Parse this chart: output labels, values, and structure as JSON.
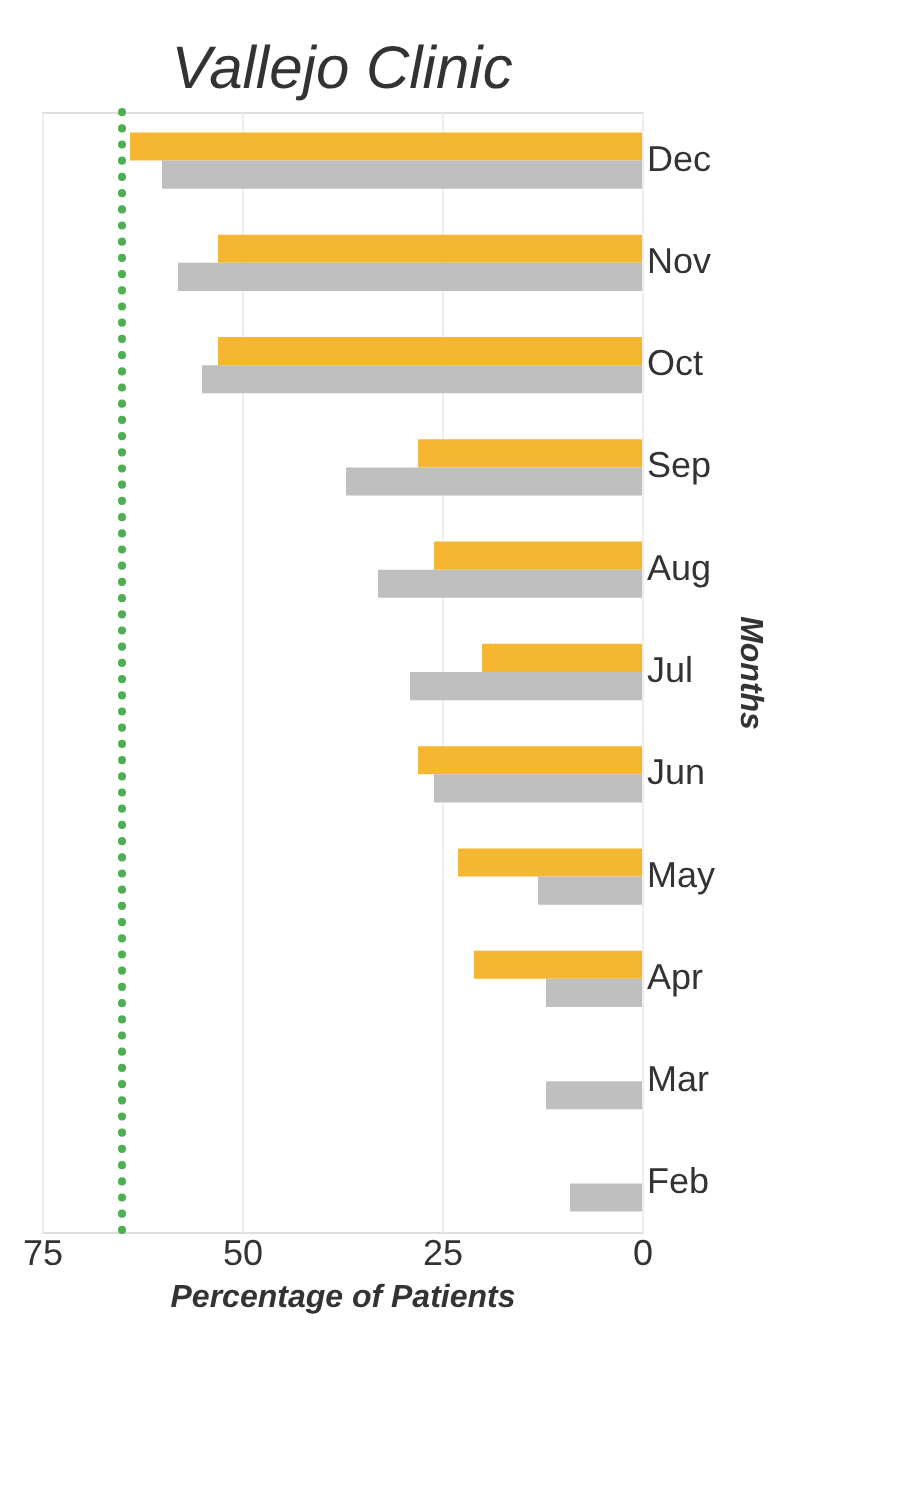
{
  "chart_data": {
    "type": "bar",
    "orientation": "horizontal",
    "title": "Vallejo Clinic",
    "xlabel": "Percentage of Patients",
    "ylabel": "Months",
    "categories": [
      "Dec",
      "Nov",
      "Oct",
      "Sep",
      "Aug",
      "Jul",
      "Jun",
      "May",
      "Apr",
      "Mar",
      "Feb"
    ],
    "series": [
      {
        "color": "#f5b731",
        "values": [
          64,
          53,
          53,
          28,
          26,
          20,
          28,
          23,
          21,
          null,
          null
        ]
      },
      {
        "color": "#bfbfbf",
        "values": [
          60,
          58,
          55,
          37,
          33,
          29,
          26,
          13,
          12,
          12,
          9
        ]
      }
    ],
    "xlim": [
      75,
      0
    ],
    "xticks": [
      75,
      50,
      25,
      0
    ],
    "grid": "x",
    "legend": false,
    "ref_lines": [
      {
        "axis": "x",
        "value": 65,
        "color": "#4caf50",
        "line_style": "dotted"
      }
    ]
  }
}
